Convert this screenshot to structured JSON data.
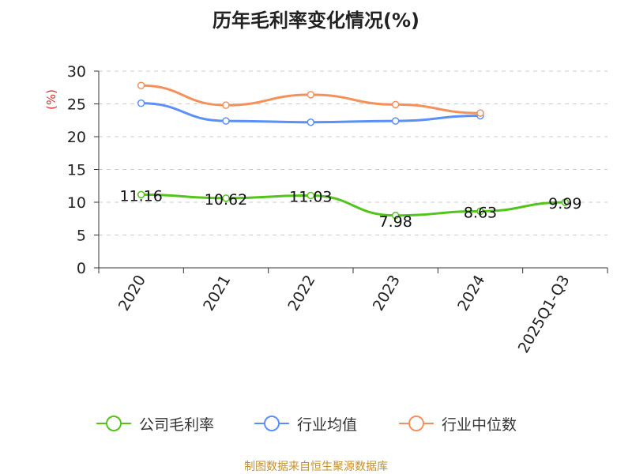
{
  "chart_data": {
    "type": "line",
    "title": "历年毛利率变化情况(%)",
    "ylabel": "(%)",
    "xlabel": "",
    "categories": [
      "2020",
      "2021",
      "2022",
      "2023",
      "2024",
      "2025Q1-Q3"
    ],
    "ylim": [
      0,
      30
    ],
    "yticks": [
      0,
      5,
      10,
      15,
      20,
      25,
      30
    ],
    "grid": true,
    "legend_position": "bottom",
    "series": [
      {
        "name": "公司毛利率",
        "color": "#52c41a",
        "values": [
          11.16,
          10.62,
          11.03,
          7.98,
          8.63,
          9.99
        ],
        "labels": [
          "11.16",
          "10.62",
          "11.03",
          "7.98",
          "8.63",
          "9.99"
        ]
      },
      {
        "name": "行业均值",
        "color": "#5b8ff9",
        "values": [
          25.1,
          22.4,
          22.2,
          22.4,
          23.2,
          null
        ]
      },
      {
        "name": "行业中位数",
        "color": "#f6905b",
        "values": [
          27.8,
          24.8,
          26.4,
          24.9,
          23.6,
          null
        ]
      }
    ]
  },
  "source": "制图数据来自恒生聚源数据库"
}
